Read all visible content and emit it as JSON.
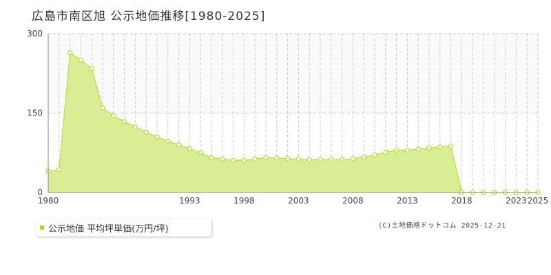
{
  "title": "広島市南区旭  公示地価推移[1980-2025]",
  "legend_label": "公示地価 平均坪単価(万円/坪)",
  "copyright": "(C)土地価格ドットコム 2025-12-21",
  "colors": {
    "fill": "#d9ed95",
    "line": "#b4df3c",
    "marker_fill": "#ffffff",
    "grid": "#c8c8c8",
    "legend_swatch": "#a8d420"
  },
  "chart_data": {
    "type": "area",
    "title": "広島市南区旭  公示地価推移[1980-2025]",
    "xlabel": "",
    "ylabel": "",
    "xlim": [
      1980,
      2025
    ],
    "ylim": [
      0,
      300
    ],
    "y_ticks": [
      0,
      150,
      300
    ],
    "x_tick_labels": [
      1980,
      1993,
      1998,
      2003,
      2008,
      2013,
      2018,
      2023,
      2025
    ],
    "grid": true,
    "legend": "bottom-left",
    "series": [
      {
        "name": "公示地価 平均坪単価(万円/坪)",
        "x": [
          1980,
          1981,
          1982,
          1983,
          1984,
          1985,
          1986,
          1987,
          1988,
          1989,
          1990,
          1991,
          1992,
          1993,
          1994,
          1995,
          1996,
          1997,
          1998,
          1999,
          2000,
          2001,
          2002,
          2003,
          2004,
          2005,
          2006,
          2007,
          2008,
          2009,
          2010,
          2011,
          2012,
          2013,
          2014,
          2015,
          2016,
          2017,
          2018,
          2019,
          2020,
          2021,
          2022,
          2023,
          2024,
          2025
        ],
        "values": [
          40,
          43,
          264,
          250,
          234,
          160,
          145,
          134,
          124,
          114,
          105,
          97,
          90,
          83,
          75,
          66,
          63,
          61,
          61,
          63,
          66,
          65,
          64,
          63,
          62,
          62,
          62,
          62,
          64,
          67,
          71,
          76,
          80,
          80,
          82,
          84,
          86,
          88,
          0,
          0,
          0,
          0,
          0,
          0,
          0,
          0
        ]
      }
    ]
  }
}
